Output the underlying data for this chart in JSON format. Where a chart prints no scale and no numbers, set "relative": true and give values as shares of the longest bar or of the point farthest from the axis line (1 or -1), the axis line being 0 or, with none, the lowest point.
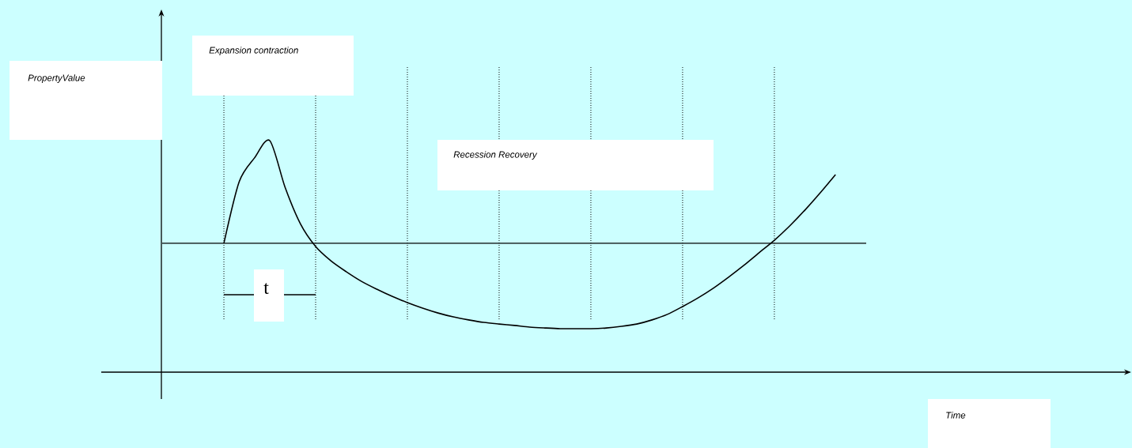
{
  "chart_data": {
    "type": "line",
    "relative": true,
    "categories": [
      null,
      null,
      null,
      null,
      null,
      null,
      null,
      null,
      null,
      null,
      null,
      null,
      null,
      null,
      null,
      null,
      null,
      null,
      null,
      null,
      null,
      null,
      null,
      null,
      null,
      null,
      null,
      null,
      null,
      null,
      null,
      null,
      null,
      null,
      null,
      null,
      null,
      null,
      null,
      null,
      null,
      null,
      null,
      null,
      null
    ],
    "values": [
      null,
      null,
      null,
      null,
      0.555,
      0.822,
      0.925,
      1.0,
      0.798,
      0.64,
      0.541,
      0.479,
      0.432,
      0.39,
      0.356,
      0.325,
      0.298,
      0.274,
      0.253,
      0.236,
      0.223,
      0.212,
      0.205,
      0.199,
      0.192,
      0.188,
      0.185,
      0.185,
      0.185,
      0.188,
      0.195,
      0.205,
      0.223,
      0.247,
      0.281,
      0.318,
      0.36,
      0.408,
      0.459,
      0.514,
      0.568,
      0.63,
      0.699,
      0.774,
      0.853
    ],
    "color": "#000000",
    "line_style": "solid",
    "marker": "none",
    "grid": "x",
    "ref_lines": [
      {
        "axis": "y",
        "value": 0.555,
        "line_style": "solid",
        "color": "#000000"
      }
    ],
    "annotations": [
      "PropertyValue",
      "Time",
      "Expansion contraction",
      "Recession Recovery",
      "t"
    ]
  }
}
